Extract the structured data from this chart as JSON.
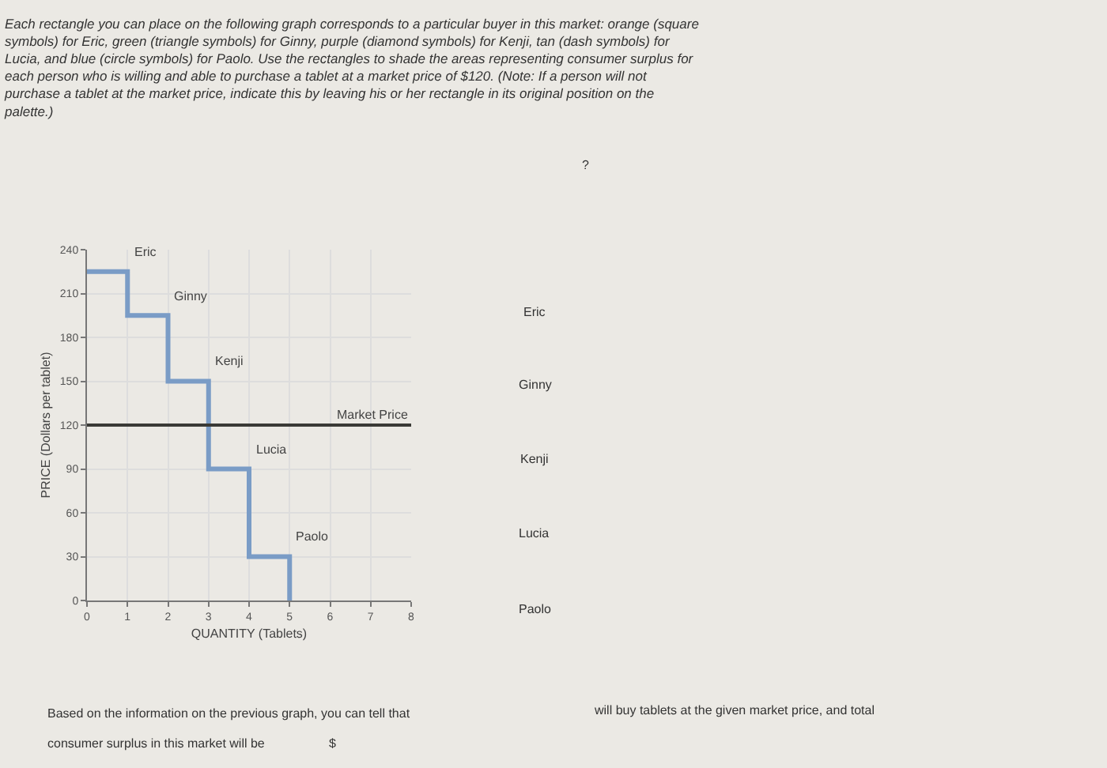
{
  "chart_data": {
    "type": "step",
    "title": "Each rectangle you can place on the following graph corresponds to a particular buyer in this market: orange (square symbols) for Eric, green (triangle symbols) for Ginny, purple (diamond symbols) for Kenji, tan (dash symbols) for Lucia, and blue (circle symbols) for Paolo. Use the rectangles to shade the areas representing consumer surplus for each person who is willing and able to purchase a tablet at a market price of $120. (Note: If a person will not purchase a tablet at the market price, indicate this by leaving his or her rectangle in its original position on the palette.)",
    "xlabel": "QUANTITY (Tablets)",
    "ylabel": "PRICE (Dollars per tablet)",
    "x": [
      0,
      1,
      2,
      3,
      4,
      5
    ],
    "series": [
      {
        "color": "#7a9cc6",
        "values": [
          225,
          195,
          150,
          90,
          30,
          0
        ]
      }
    ],
    "xlim": [
      0,
      8
    ],
    "xticks": [
      0,
      1,
      2,
      3,
      4,
      5,
      6,
      7,
      8
    ],
    "ylim": [
      0,
      240
    ],
    "yticks": [
      0,
      30,
      60,
      90,
      120,
      150,
      180,
      210,
      240
    ],
    "grid": true,
    "marker": "none",
    "line_style": "solid",
    "ref_lines": [
      {
        "axis": "y",
        "value": 120,
        "label": "Market Price",
        "color": "#3a3a36"
      }
    ],
    "annotations": [
      {
        "text": "Eric",
        "x": 1,
        "y": 225
      },
      {
        "text": "Ginny",
        "x": 2,
        "y": 195
      },
      {
        "text": "Kenji",
        "x": 3,
        "y": 150
      },
      {
        "text": "Lucia",
        "x": 4,
        "y": 90
      },
      {
        "text": "Paolo",
        "x": 5,
        "y": 30
      },
      "?",
      "Eric",
      "Ginny",
      "Kenji",
      "Lucia",
      "Paolo",
      "Based on the information on the previous graph, you can tell that",
      "will buy tablets at the given market price, and total",
      "consumer surplus in this market will be",
      "$"
    ]
  }
}
